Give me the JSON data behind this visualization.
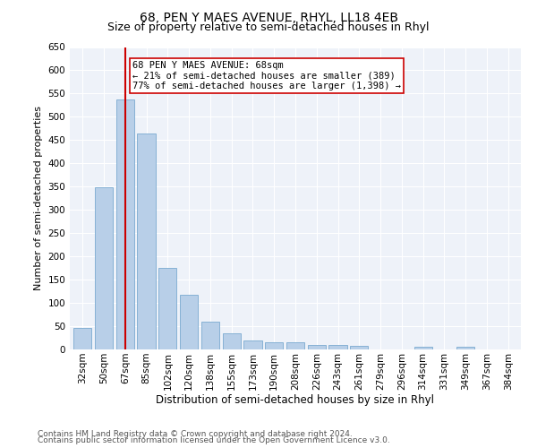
{
  "title": "68, PEN Y MAES AVENUE, RHYL, LL18 4EB",
  "subtitle": "Size of property relative to semi-detached houses in Rhyl",
  "xlabel": "Distribution of semi-detached houses by size in Rhyl",
  "ylabel": "Number of semi-detached properties",
  "categories": [
    "32sqm",
    "50sqm",
    "67sqm",
    "85sqm",
    "102sqm",
    "120sqm",
    "138sqm",
    "155sqm",
    "173sqm",
    "190sqm",
    "208sqm",
    "226sqm",
    "243sqm",
    "261sqm",
    "279sqm",
    "296sqm",
    "314sqm",
    "331sqm",
    "349sqm",
    "367sqm",
    "384sqm"
  ],
  "values": [
    46,
    349,
    537,
    465,
    175,
    117,
    59,
    35,
    19,
    15,
    15,
    10,
    10,
    8,
    0,
    0,
    6,
    0,
    5,
    0,
    0
  ],
  "bar_color": "#b8cfe8",
  "bar_edge_color": "#7aaad0",
  "highlight_index": 2,
  "highlight_line_color": "#cc0000",
  "annotation_line1": "68 PEN Y MAES AVENUE: 68sqm",
  "annotation_line2": "← 21% of semi-detached houses are smaller (389)",
  "annotation_line3": "77% of semi-detached houses are larger (1,398) →",
  "annotation_box_color": "#ffffff",
  "annotation_box_edge_color": "#cc0000",
  "ylim": [
    0,
    650
  ],
  "yticks": [
    0,
    50,
    100,
    150,
    200,
    250,
    300,
    350,
    400,
    450,
    500,
    550,
    600,
    650
  ],
  "bg_color": "#eef2f9",
  "footer_line1": "Contains HM Land Registry data © Crown copyright and database right 2024.",
  "footer_line2": "Contains public sector information licensed under the Open Government Licence v3.0.",
  "title_fontsize": 10,
  "subtitle_fontsize": 9,
  "xlabel_fontsize": 8.5,
  "ylabel_fontsize": 8,
  "tick_fontsize": 7.5,
  "annotation_fontsize": 7.5,
  "footer_fontsize": 6.5
}
